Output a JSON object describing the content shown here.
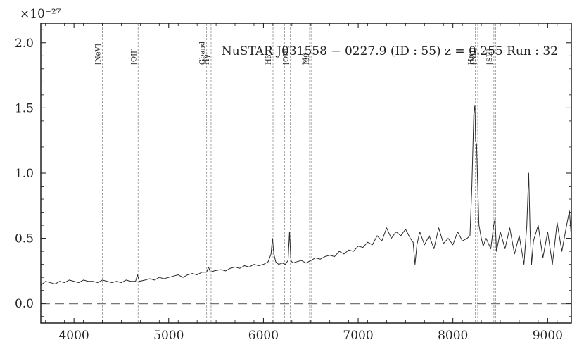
{
  "chart_data": {
    "type": "line",
    "title": "NuSTAR J031558 − 0227.9 (ID : 55)   z = 0.255   Run : 32",
    "y_multiplier": "×10⁻²⁷",
    "xlabel": "",
    "ylabel": "",
    "xlim": [
      3650,
      9250
    ],
    "ylim": [
      -0.15,
      2.15
    ],
    "xticks": [
      4000,
      5000,
      6000,
      7000,
      8000,
      9000
    ],
    "xtick_labels": [
      "4000",
      "5000",
      "6000",
      "7000",
      "8000",
      "9000"
    ],
    "yticks": [
      0.0,
      0.5,
      1.0,
      1.5,
      2.0
    ],
    "ytick_labels": [
      "0.0",
      "0.5",
      "1.0",
      "1.5",
      "2.0"
    ],
    "grid": false,
    "series": [
      {
        "x": [
          3650,
          3700,
          3750,
          3800,
          3850,
          3900,
          3950,
          4000,
          4050,
          4100,
          4150,
          4200,
          4250,
          4300,
          4350,
          4400,
          4450,
          4500,
          4550,
          4600,
          4650,
          4670,
          4690,
          4750,
          4800,
          4850,
          4900,
          4950,
          5000,
          5050,
          5100,
          5150,
          5200,
          5250,
          5300,
          5350,
          5400,
          5420,
          5440,
          5480,
          5550,
          5600,
          5650,
          5700,
          5750,
          5800,
          5850,
          5900,
          5950,
          6000,
          6050,
          6080,
          6095,
          6110,
          6130,
          6160,
          6200,
          6230,
          6260,
          6275,
          6290,
          6310,
          6350,
          6400,
          6450,
          6500,
          6550,
          6600,
          6650,
          6700,
          6750,
          6800,
          6850,
          6900,
          6950,
          7000,
          7050,
          7100,
          7150,
          7200,
          7250,
          7300,
          7350,
          7400,
          7450,
          7500,
          7550,
          7580,
          7600,
          7620,
          7650,
          7700,
          7750,
          7800,
          7850,
          7900,
          7950,
          8000,
          8050,
          8100,
          8150,
          8180,
          8200,
          8220,
          8232,
          8240,
          8250,
          8260,
          8275,
          8300,
          8320,
          8350,
          8400,
          8430,
          8445,
          8460,
          8500,
          8550,
          8600,
          8650,
          8700,
          8750,
          8780,
          8800,
          8815,
          8830,
          8850,
          8900,
          8950,
          9000,
          9050,
          9100,
          9150,
          9200,
          9230,
          9250
        ],
        "y": [
          0.14,
          0.17,
          0.16,
          0.15,
          0.17,
          0.16,
          0.18,
          0.17,
          0.16,
          0.18,
          0.17,
          0.17,
          0.16,
          0.18,
          0.17,
          0.16,
          0.17,
          0.16,
          0.18,
          0.17,
          0.17,
          0.22,
          0.17,
          0.18,
          0.19,
          0.18,
          0.2,
          0.19,
          0.2,
          0.21,
          0.22,
          0.2,
          0.22,
          0.23,
          0.22,
          0.24,
          0.24,
          0.28,
          0.24,
          0.25,
          0.26,
          0.25,
          0.27,
          0.28,
          0.27,
          0.29,
          0.28,
          0.3,
          0.29,
          0.3,
          0.32,
          0.38,
          0.5,
          0.38,
          0.32,
          0.3,
          0.31,
          0.3,
          0.33,
          0.55,
          0.33,
          0.31,
          0.32,
          0.33,
          0.31,
          0.33,
          0.35,
          0.34,
          0.36,
          0.37,
          0.36,
          0.4,
          0.38,
          0.41,
          0.4,
          0.44,
          0.43,
          0.47,
          0.45,
          0.52,
          0.48,
          0.58,
          0.5,
          0.55,
          0.52,
          0.57,
          0.5,
          0.47,
          0.3,
          0.45,
          0.55,
          0.45,
          0.52,
          0.42,
          0.58,
          0.46,
          0.5,
          0.45,
          0.55,
          0.48,
          0.5,
          0.52,
          0.9,
          1.45,
          1.52,
          1.25,
          1.22,
          0.95,
          0.6,
          0.5,
          0.44,
          0.5,
          0.42,
          0.6,
          0.65,
          0.4,
          0.55,
          0.42,
          0.58,
          0.38,
          0.52,
          0.3,
          0.6,
          1.0,
          0.55,
          0.3,
          0.48,
          0.6,
          0.35,
          0.55,
          0.3,
          0.62,
          0.4,
          0.6,
          0.71,
          0.5
        ]
      }
    ],
    "emission_lines": [
      {
        "name": "[NeV]",
        "x": 4300
      },
      {
        "name": "[OII]",
        "x": 4677
      },
      {
        "name": "Gband",
        "x": 5400
      },
      {
        "name": "Hγ",
        "x": 5447
      },
      {
        "name": "Hβ",
        "x": 6101
      },
      {
        "name": "",
        "x": 6223
      },
      {
        "name": "[OIII]",
        "x": 6284
      },
      {
        "name": "Mg",
        "x": 6487
      },
      {
        "name": "Ib",
        "x": 6503
      },
      {
        "name": "Hα",
        "x": 8236
      },
      {
        "name": "[NII]",
        "x": 8262
      },
      {
        "name": "[SII]",
        "x": 8432
      },
      {
        "name": "",
        "x": 8451
      }
    ],
    "zero_line": 0.0,
    "colors": {
      "spectrum": "#2a2a2a",
      "line_markers": "#9a9a9a",
      "zero_line": "#777777"
    }
  }
}
